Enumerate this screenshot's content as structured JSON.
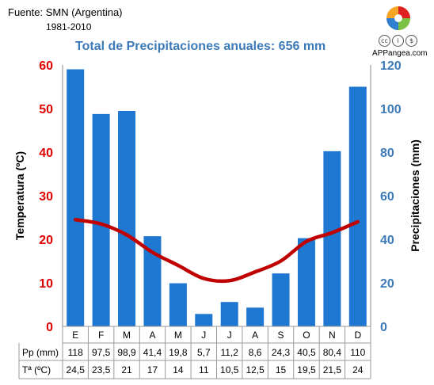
{
  "header": {
    "source": "Fuente: SMN (Argentina)",
    "period": "1981-2010",
    "brand": "APPangea.com",
    "license_icons": [
      "cc-icon",
      "by-icon",
      "nc-icon"
    ]
  },
  "chart_data": {
    "type": "bar+line",
    "title": "Total de Precipitaciones anuales: 656 mm",
    "categories": [
      "E",
      "F",
      "M",
      "A",
      "M",
      "J",
      "J",
      "A",
      "S",
      "O",
      "N",
      "D"
    ],
    "series": [
      {
        "name": "Pp (mm)",
        "type": "bar",
        "axis": "right",
        "color": "#1e78d2",
        "values": [
          118,
          97.5,
          98.9,
          41.4,
          19.8,
          5.7,
          11.2,
          8.6,
          24.3,
          40.5,
          80.4,
          110
        ]
      },
      {
        "name": "Tª (ºC)",
        "type": "line",
        "axis": "left",
        "color": "#c00000",
        "values": [
          24.5,
          23.5,
          21,
          17,
          14,
          11,
          10.5,
          12.5,
          15,
          19.5,
          21.5,
          24
        ]
      }
    ],
    "table_rows": [
      {
        "label": "Pp (mm)",
        "values": [
          "118",
          "97,5",
          "98,9",
          "41,4",
          "19,8",
          "5,7",
          "11,2",
          "8,6",
          "24,3",
          "40,5",
          "80,4",
          "110"
        ]
      },
      {
        "label": "Tª (ºC)",
        "values": [
          "24,5",
          "23,5",
          "21",
          "17",
          "14",
          "11",
          "10,5",
          "12,5",
          "15",
          "19,5",
          "21,5",
          "24"
        ]
      }
    ],
    "left_axis": {
      "label": "Temperatura (ºC)",
      "min": 0,
      "max": 60,
      "ticks": [
        0,
        10,
        20,
        30,
        40,
        50,
        60
      ],
      "color": "#e00000"
    },
    "right_axis": {
      "label": "Precipitaciones (mm)",
      "min": 0,
      "max": 120,
      "ticks": [
        0,
        20,
        40,
        60,
        80,
        100,
        120
      ],
      "color": "#3d7ab8"
    },
    "grid": false
  }
}
